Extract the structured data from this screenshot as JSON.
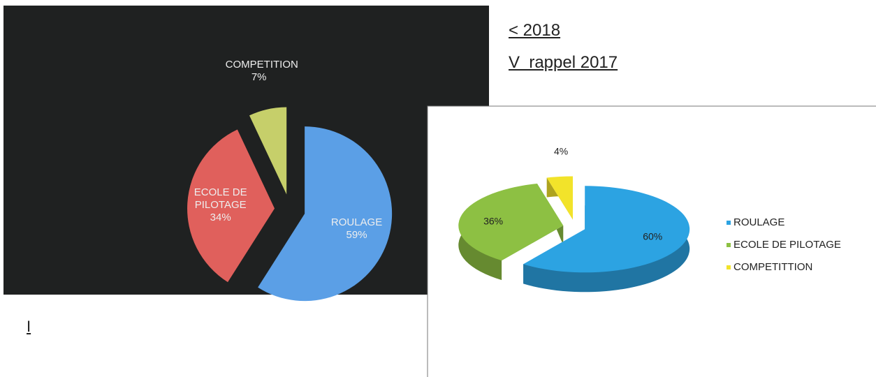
{
  "notes": [
    "< 2018",
    "V  rappel 2017"
  ],
  "margin_mark": "I",
  "chart_data": [
    {
      "type": "pie",
      "categories": [
        "ROULAGE",
        "ECOLE DE PILOTAGE",
        "COMPETITION"
      ],
      "values": [
        59,
        34,
        7
      ],
      "value_labels": [
        "59%",
        "34%",
        "7%"
      ],
      "colors": [
        "#5b9fe6",
        "#e0605c",
        "#c6cf6a"
      ]
    },
    {
      "type": "pie3d",
      "categories": [
        "ROULAGE",
        "ECOLE DE PILOTAGE",
        "COMPETITTION"
      ],
      "values": [
        60,
        36,
        4
      ],
      "value_labels": [
        "60%",
        "36%",
        "4%"
      ],
      "colors": [
        "#2ca3e2",
        "#8dc043",
        "#f2e32a"
      ],
      "legend": "right"
    }
  ]
}
